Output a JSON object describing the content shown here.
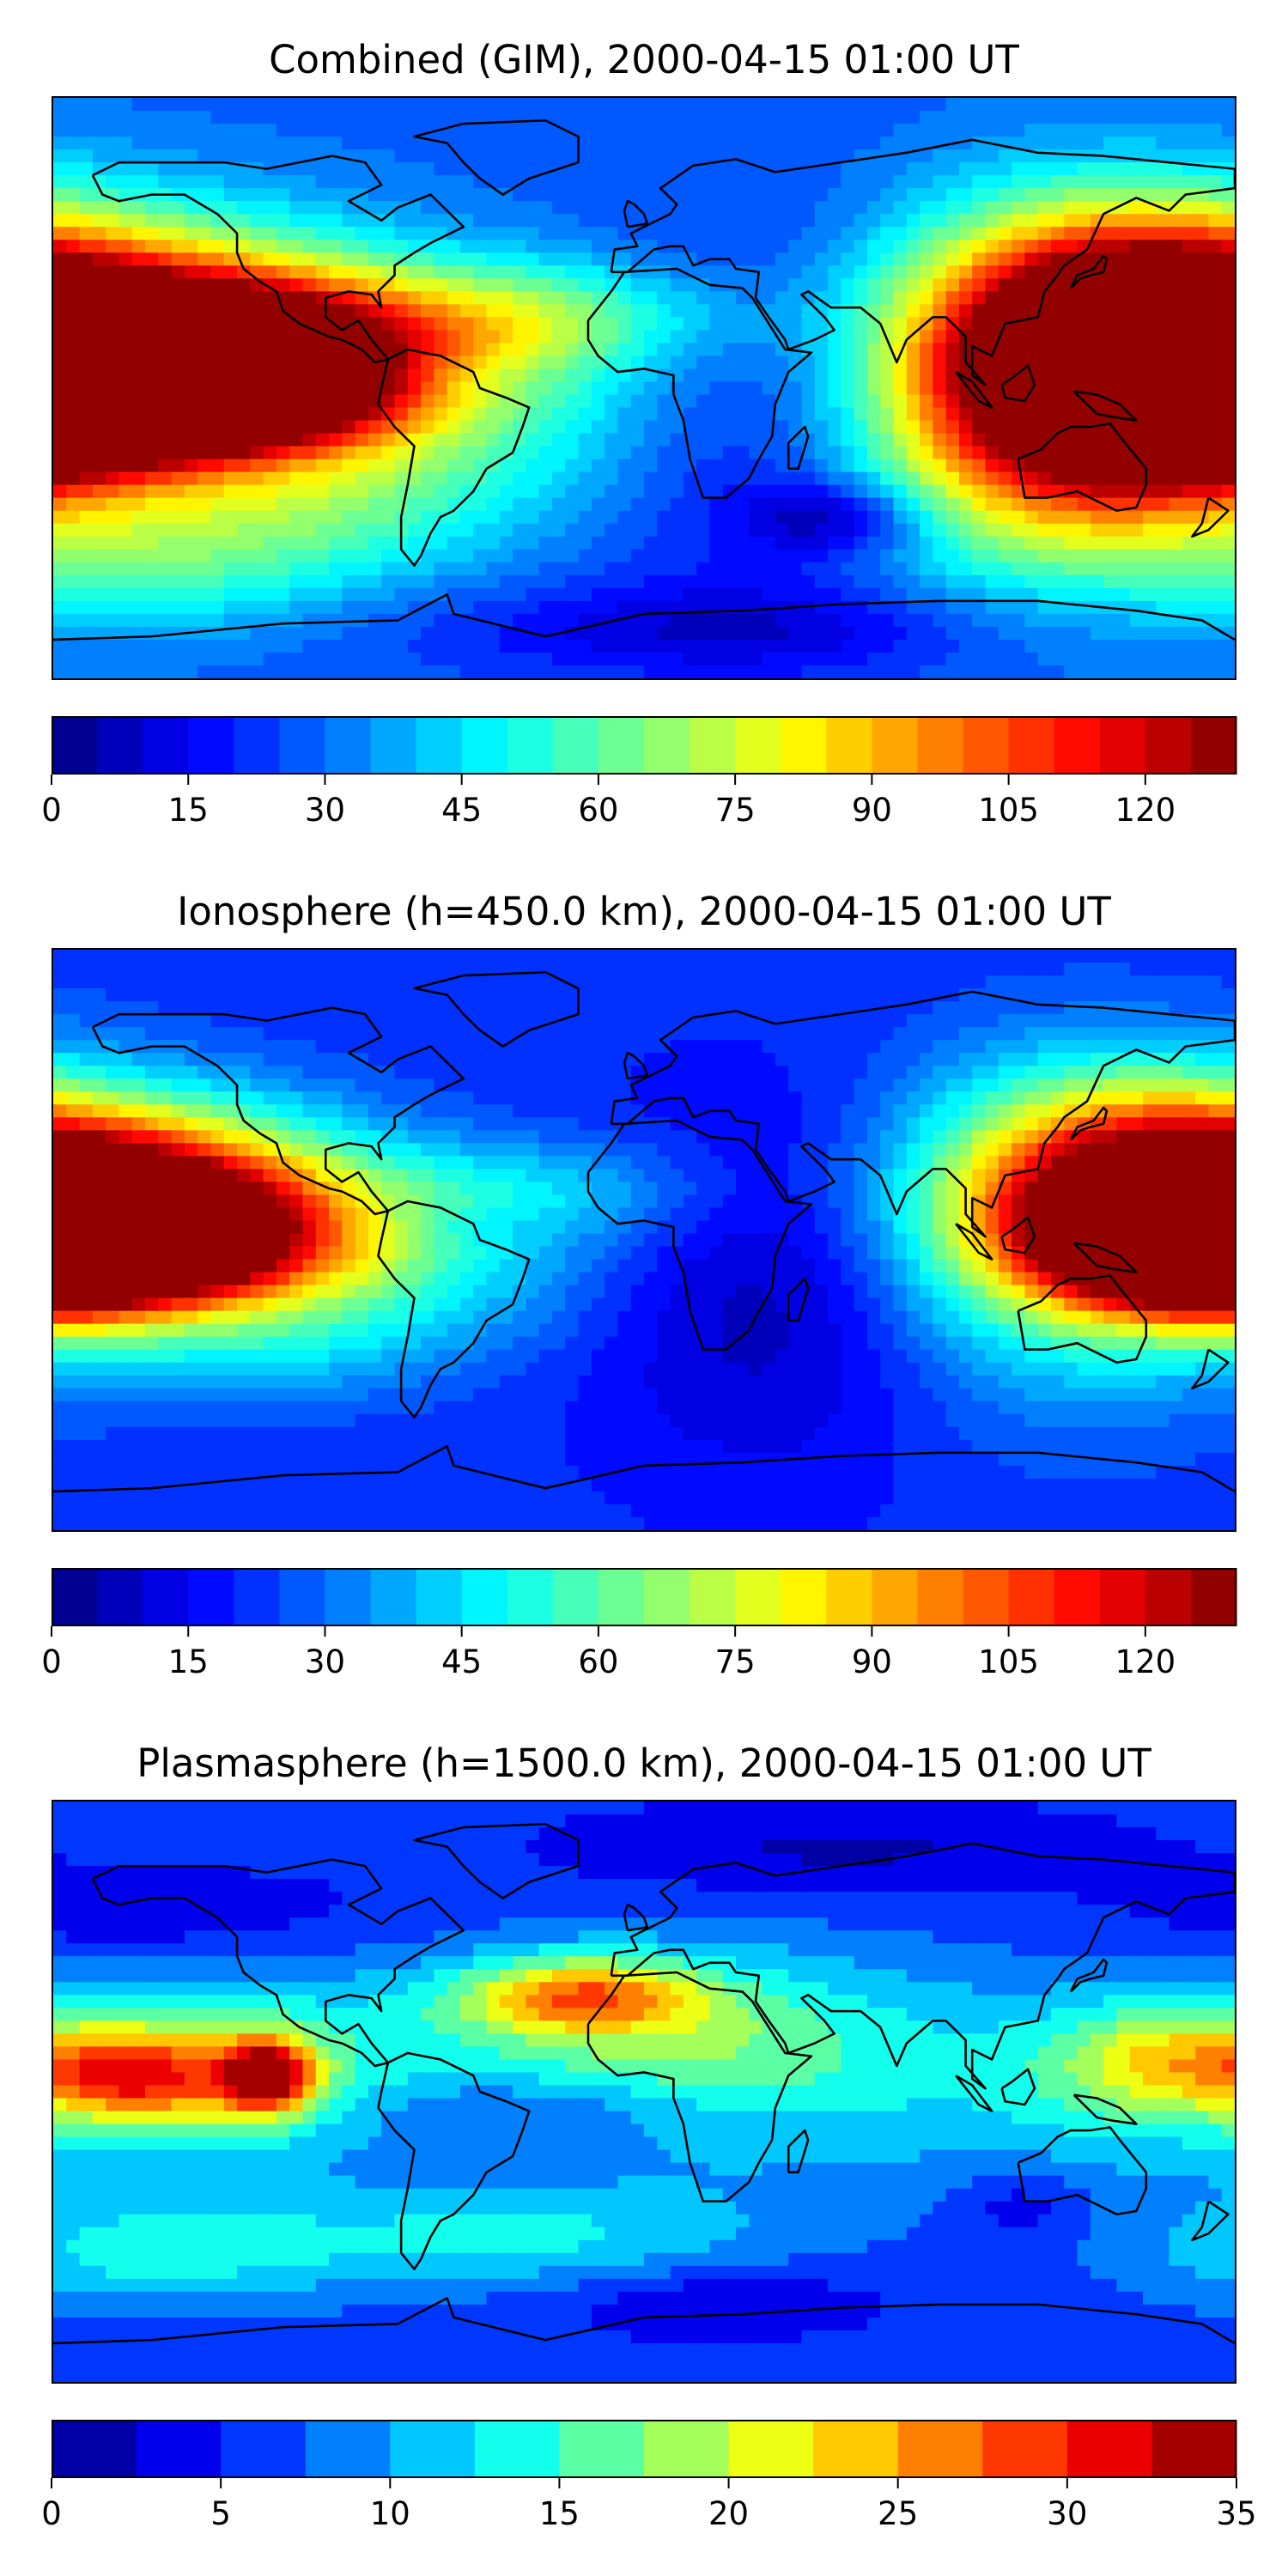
{
  "chart_data": [
    {
      "type": "heatmap",
      "title": "Combined (GIM), 2000-04-15 01:00 UT",
      "colormap": "jet",
      "colorbar": {
        "range": [
          0,
          130
        ],
        "levels": 26,
        "ticks": [
          0,
          15,
          30,
          45,
          60,
          75,
          90,
          105,
          120
        ],
        "tick_labels": [
          "0",
          "15",
          "30",
          "45",
          "60",
          "75",
          "90",
          "105",
          "120"
        ]
      },
      "background_value": 28,
      "features": [
        {
          "lon": -175,
          "lat": 15,
          "value": 115,
          "rlon": 60,
          "rlat": 25
        },
        {
          "lon": -150,
          "lat": 3,
          "value": 125,
          "rlon": 45,
          "rlat": 12
        },
        {
          "lon": -120,
          "lat": 8,
          "value": 95,
          "rlon": 30,
          "rlat": 18
        },
        {
          "lon": 178,
          "lat": -2,
          "value": 120,
          "rlon": 35,
          "rlat": 18
        },
        {
          "lon": 150,
          "lat": 20,
          "value": 95,
          "rlon": 40,
          "rlat": 25
        },
        {
          "lon": 120,
          "lat": 0,
          "value": 70,
          "rlon": 40,
          "rlat": 35
        },
        {
          "lon": 130,
          "lat": -25,
          "value": 65,
          "rlon": 45,
          "rlat": 25
        },
        {
          "lon": -70,
          "lat": -5,
          "value": 60,
          "rlon": 60,
          "rlat": 25
        },
        {
          "lon": -40,
          "lat": 22,
          "value": 60,
          "rlon": 45,
          "rlat": 12
        },
        {
          "lon": -60,
          "lat": 5,
          "value": 22,
          "rlon": 20,
          "rlat": 5
        },
        {
          "lon": 40,
          "lat": -10,
          "value": 10,
          "rlon": 40,
          "rlat": 40
        },
        {
          "lon": 60,
          "lat": -40,
          "value": 5,
          "rlon": 20,
          "rlat": 8
        },
        {
          "lon": 20,
          "lat": -75,
          "value": 12,
          "rlon": 60,
          "rlat": 10
        },
        {
          "lon": -100,
          "lat": -40,
          "value": 45,
          "rlon": 40,
          "rlat": 15
        },
        {
          "lon": -150,
          "lat": -55,
          "value": 50,
          "rlon": 40,
          "rlat": 15
        }
      ]
    },
    {
      "type": "heatmap",
      "title": "Ionosphere  (h=450.0 km), 2000-04-15 01:00 UT",
      "colormap": "jet",
      "colorbar": {
        "range": [
          0,
          130
        ],
        "levels": 26,
        "ticks": [
          0,
          15,
          30,
          45,
          60,
          75,
          90,
          105,
          120
        ],
        "tick_labels": [
          "0",
          "15",
          "30",
          "45",
          "60",
          "75",
          "90",
          "105",
          "120"
        ]
      },
      "background_value": 22,
      "features": [
        {
          "lon": -175,
          "lat": 15,
          "value": 95,
          "rlon": 45,
          "rlat": 20
        },
        {
          "lon": -170,
          "lat": -2,
          "value": 100,
          "rlon": 40,
          "rlat": 12
        },
        {
          "lon": -130,
          "lat": 8,
          "value": 75,
          "rlon": 40,
          "rlat": 20
        },
        {
          "lon": 178,
          "lat": -2,
          "value": 100,
          "rlon": 30,
          "rlat": 15
        },
        {
          "lon": 150,
          "lat": 15,
          "value": 80,
          "rlon": 40,
          "rlat": 25
        },
        {
          "lon": 125,
          "lat": 0,
          "value": 55,
          "rlon": 40,
          "rlat": 35
        },
        {
          "lon": -80,
          "lat": -10,
          "value": 45,
          "rlon": 50,
          "rlat": 18
        },
        {
          "lon": -30,
          "lat": 15,
          "value": 42,
          "rlon": 40,
          "rlat": 12
        },
        {
          "lon": -55,
          "lat": 5,
          "value": 15,
          "rlon": 20,
          "rlat": 5
        },
        {
          "lon": 40,
          "lat": -15,
          "value": 5,
          "rlon": 40,
          "rlat": 40
        },
        {
          "lon": -120,
          "lat": -35,
          "value": 35,
          "rlon": 40,
          "rlat": 12
        }
      ]
    },
    {
      "type": "heatmap",
      "title": "Plasmasphere (h=1500.0 km), 2000-04-15 01:00 UT",
      "colormap": "jet",
      "colorbar": {
        "range": [
          0,
          35
        ],
        "levels": 14,
        "ticks": [
          0,
          5,
          10,
          15,
          20,
          25,
          30,
          35
        ],
        "tick_labels": [
          "0",
          "5",
          "10",
          "15",
          "20",
          "25",
          "30",
          "35"
        ]
      },
      "background_value": 6,
      "features": [
        {
          "lon": -115,
          "lat": 5,
          "value": 28,
          "rlon": 10,
          "rlat": 8
        },
        {
          "lon": -155,
          "lat": 5,
          "value": 20,
          "rlon": 20,
          "rlat": 10
        },
        {
          "lon": -130,
          "lat": 5,
          "value": 17,
          "rlon": 40,
          "rlat": 20
        },
        {
          "lon": -20,
          "lat": 30,
          "value": 20,
          "rlon": 25,
          "rlat": 8
        },
        {
          "lon": -10,
          "lat": 20,
          "value": 14,
          "rlon": 55,
          "rlat": 18
        },
        {
          "lon": 40,
          "lat": 5,
          "value": 12,
          "rlon": 50,
          "rlat": 25
        },
        {
          "lon": 160,
          "lat": 10,
          "value": 17,
          "rlon": 25,
          "rlat": 12
        },
        {
          "lon": 140,
          "lat": 0,
          "value": 11,
          "rlon": 40,
          "rlat": 25
        },
        {
          "lon": -30,
          "lat": -5,
          "value": 3,
          "rlon": 40,
          "rlat": 7
        },
        {
          "lon": 60,
          "lat": 75,
          "value": 2,
          "rlon": 60,
          "rlat": 10
        },
        {
          "lon": 20,
          "lat": -65,
          "value": 2,
          "rlon": 35,
          "rlat": 8
        },
        {
          "lon": 115,
          "lat": -35,
          "value": 2,
          "rlon": 15,
          "rlat": 8
        },
        {
          "lon": -150,
          "lat": 55,
          "value": 3,
          "rlon": 50,
          "rlat": 10
        },
        {
          "lon": -40,
          "lat": -45,
          "value": 13,
          "rlon": 55,
          "rlat": 12
        },
        {
          "lon": -150,
          "lat": -50,
          "value": 13,
          "rlon": 40,
          "rlat": 12
        }
      ]
    }
  ]
}
